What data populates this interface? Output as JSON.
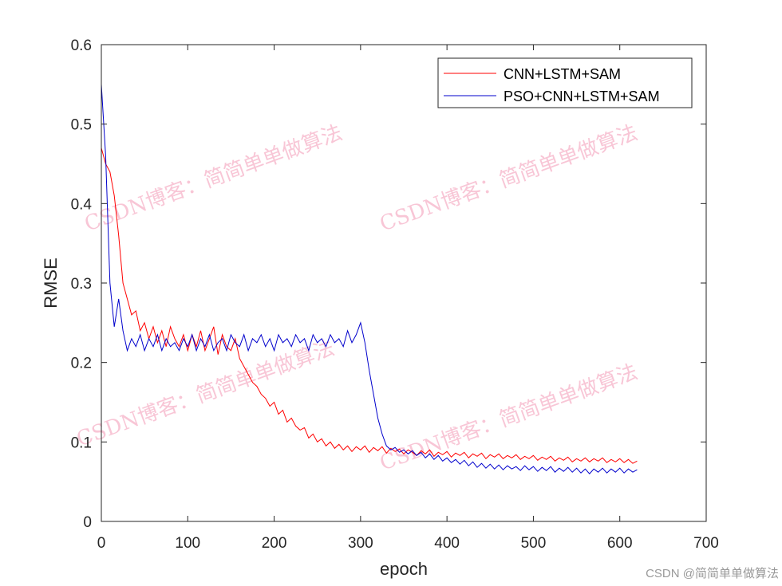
{
  "chart_data": {
    "type": "line",
    "title": "",
    "xlabel": "epoch",
    "ylabel": "RMSE",
    "xlim": [
      0,
      700
    ],
    "ylim": [
      0,
      0.6
    ],
    "xticks": [
      0,
      100,
      200,
      300,
      400,
      500,
      600,
      700
    ],
    "yticks": [
      0,
      0.1,
      0.2,
      0.3,
      0.4,
      0.5,
      0.6
    ],
    "xtick_labels": [
      "0",
      "100",
      "200",
      "300",
      "400",
      "500",
      "600",
      "700"
    ],
    "ytick_labels": [
      "0",
      "0.1",
      "0.2",
      "0.3",
      "0.4",
      "0.5",
      "0.6"
    ],
    "grid": false,
    "legend_placement": "top-right",
    "x": [
      0,
      5,
      10,
      15,
      20,
      25,
      30,
      35,
      40,
      45,
      50,
      55,
      60,
      65,
      70,
      75,
      80,
      85,
      90,
      95,
      100,
      105,
      110,
      115,
      120,
      125,
      130,
      135,
      140,
      145,
      150,
      155,
      160,
      165,
      170,
      175,
      180,
      185,
      190,
      195,
      200,
      205,
      210,
      215,
      220,
      225,
      230,
      235,
      240,
      245,
      250,
      255,
      260,
      265,
      270,
      275,
      280,
      285,
      290,
      295,
      300,
      305,
      310,
      315,
      320,
      325,
      330,
      335,
      340,
      345,
      350,
      355,
      360,
      365,
      370,
      375,
      380,
      385,
      390,
      395,
      400,
      405,
      410,
      415,
      420,
      425,
      430,
      435,
      440,
      445,
      450,
      455,
      460,
      465,
      470,
      475,
      480,
      485,
      490,
      495,
      500,
      505,
      510,
      515,
      520,
      525,
      530,
      535,
      540,
      545,
      550,
      555,
      560,
      565,
      570,
      575,
      580,
      585,
      590,
      595,
      600,
      605,
      610,
      615,
      620
    ],
    "series": [
      {
        "name": "CNN+LSTM+SAM",
        "color": "#ff0000",
        "values": [
          0.47,
          0.45,
          0.44,
          0.41,
          0.36,
          0.3,
          0.28,
          0.26,
          0.265,
          0.24,
          0.25,
          0.23,
          0.245,
          0.225,
          0.24,
          0.22,
          0.245,
          0.23,
          0.22,
          0.235,
          0.215,
          0.235,
          0.22,
          0.24,
          0.215,
          0.23,
          0.245,
          0.21,
          0.235,
          0.22,
          0.215,
          0.23,
          0.205,
          0.195,
          0.185,
          0.175,
          0.17,
          0.16,
          0.155,
          0.145,
          0.15,
          0.135,
          0.14,
          0.125,
          0.13,
          0.12,
          0.115,
          0.118,
          0.105,
          0.11,
          0.1,
          0.104,
          0.095,
          0.1,
          0.092,
          0.097,
          0.09,
          0.095,
          0.088,
          0.094,
          0.09,
          0.095,
          0.087,
          0.093,
          0.089,
          0.094,
          0.086,
          0.092,
          0.088,
          0.091,
          0.085,
          0.09,
          0.087,
          0.083,
          0.089,
          0.085,
          0.09,
          0.082,
          0.087,
          0.084,
          0.088,
          0.081,
          0.086,
          0.083,
          0.087,
          0.08,
          0.085,
          0.082,
          0.086,
          0.079,
          0.084,
          0.081,
          0.085,
          0.079,
          0.083,
          0.08,
          0.084,
          0.078,
          0.082,
          0.079,
          0.083,
          0.077,
          0.081,
          0.078,
          0.082,
          0.076,
          0.08,
          0.077,
          0.081,
          0.075,
          0.079,
          0.076,
          0.08,
          0.075,
          0.079,
          0.076,
          0.08,
          0.074,
          0.078,
          0.075,
          0.079,
          0.074,
          0.078,
          0.073,
          0.076
        ]
      },
      {
        "name": "PSO+CNN+LSTM+SAM",
        "color": "#0000cc",
        "values": [
          0.55,
          0.46,
          0.3,
          0.245,
          0.28,
          0.24,
          0.215,
          0.23,
          0.22,
          0.235,
          0.215,
          0.23,
          0.22,
          0.235,
          0.215,
          0.23,
          0.22,
          0.225,
          0.215,
          0.23,
          0.22,
          0.235,
          0.215,
          0.23,
          0.22,
          0.235,
          0.215,
          0.225,
          0.23,
          0.215,
          0.235,
          0.225,
          0.22,
          0.235,
          0.215,
          0.23,
          0.225,
          0.235,
          0.22,
          0.23,
          0.215,
          0.235,
          0.225,
          0.23,
          0.22,
          0.235,
          0.225,
          0.23,
          0.215,
          0.235,
          0.225,
          0.23,
          0.22,
          0.235,
          0.225,
          0.23,
          0.22,
          0.24,
          0.225,
          0.235,
          0.25,
          0.225,
          0.19,
          0.16,
          0.13,
          0.11,
          0.095,
          0.09,
          0.093,
          0.087,
          0.09,
          0.085,
          0.089,
          0.083,
          0.087,
          0.08,
          0.085,
          0.078,
          0.083,
          0.076,
          0.08,
          0.074,
          0.078,
          0.072,
          0.077,
          0.07,
          0.075,
          0.068,
          0.073,
          0.067,
          0.072,
          0.066,
          0.071,
          0.065,
          0.07,
          0.066,
          0.069,
          0.064,
          0.07,
          0.065,
          0.069,
          0.063,
          0.068,
          0.064,
          0.069,
          0.062,
          0.067,
          0.063,
          0.068,
          0.062,
          0.067,
          0.061,
          0.066,
          0.06,
          0.066,
          0.062,
          0.067,
          0.061,
          0.066,
          0.062,
          0.067,
          0.061,
          0.066,
          0.062,
          0.065
        ]
      }
    ]
  },
  "watermark": "CSDN博客：简简单单做算法",
  "footer": "CSDN @简简单单做算法"
}
